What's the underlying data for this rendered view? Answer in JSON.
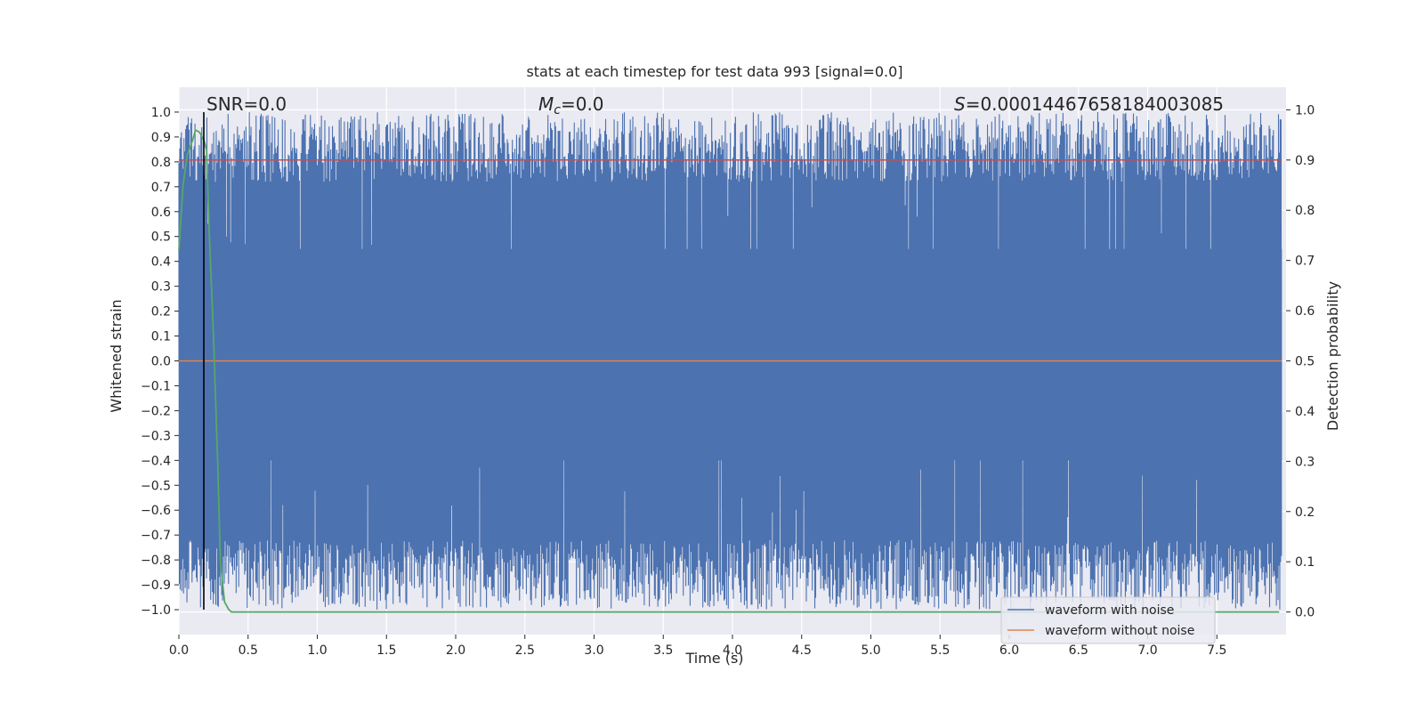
{
  "chart_data": {
    "type": "line",
    "title": "stats at each timestep for test data 993 [signal=0.0]",
    "xlabel": "Time (s)",
    "ylabel": "Whitened strain",
    "y2label": "Detection probability",
    "xlim": [
      0.0,
      8.0
    ],
    "ylim": [
      -1.1,
      1.1
    ],
    "y2lim": [
      -0.045,
      1.045
    ],
    "x_ticks": [
      "0.0",
      "0.5",
      "1.0",
      "1.5",
      "2.0",
      "2.5",
      "3.0",
      "3.5",
      "4.0",
      "4.5",
      "5.0",
      "5.5",
      "6.0",
      "6.5",
      "7.0",
      "7.5"
    ],
    "y_ticks": [
      "1.0",
      "0.9",
      "0.8",
      "0.7",
      "0.6",
      "0.5",
      "0.4",
      "0.3",
      "0.2",
      "0.1",
      "0.0",
      "−0.1",
      "−0.2",
      "−0.3",
      "−0.4",
      "−0.5",
      "−0.6",
      "−0.7",
      "−0.8",
      "−0.9",
      "−1.0"
    ],
    "y2_ticks": [
      "1.0",
      "0.9",
      "0.8",
      "0.7",
      "0.6",
      "0.5",
      "0.4",
      "0.3",
      "0.2",
      "0.1",
      "0.0"
    ],
    "grid": true,
    "legend_position": "bottom-right",
    "annotations": {
      "snr": "SNR=0.0",
      "mc_symbol": "M",
      "mc_sub": "c",
      "mc_value": "=0.0",
      "s_symbol": "S",
      "s_value": "=0.00014467658184003085"
    },
    "series": [
      {
        "name": "waveform with noise",
        "color": "#4c72b0",
        "description_values": "dense whitened noise spanning -1.0 to 1.0 over 0.0–8.0 s"
      },
      {
        "name": "waveform without noise",
        "color": "#dd8452",
        "y": 0.0
      },
      {
        "color": "#c44e52",
        "axis": "y2",
        "y": 0.9
      },
      {
        "color": "#55a868",
        "axis": "y2",
        "x": [
          0.0,
          0.03,
          0.06,
          0.1,
          0.12,
          0.15,
          0.18,
          0.2,
          0.22,
          0.25,
          0.28,
          0.3,
          0.33,
          0.36,
          0.38,
          0.5,
          7.95
        ],
        "y": [
          0.72,
          0.85,
          0.91,
          0.94,
          0.96,
          0.955,
          0.94,
          0.92,
          0.75,
          0.55,
          0.3,
          0.1,
          0.02,
          0.005,
          0.0,
          0.0,
          0.0
        ]
      }
    ],
    "vline": {
      "x": 0.18,
      "color": "#000000"
    },
    "legend": [
      {
        "label": "waveform with noise",
        "color": "#4c72b0"
      },
      {
        "label": "waveform without noise",
        "color": "#dd8452"
      }
    ],
    "colors": {
      "background": "#eaeaf2",
      "grid": "#ffffff"
    }
  }
}
